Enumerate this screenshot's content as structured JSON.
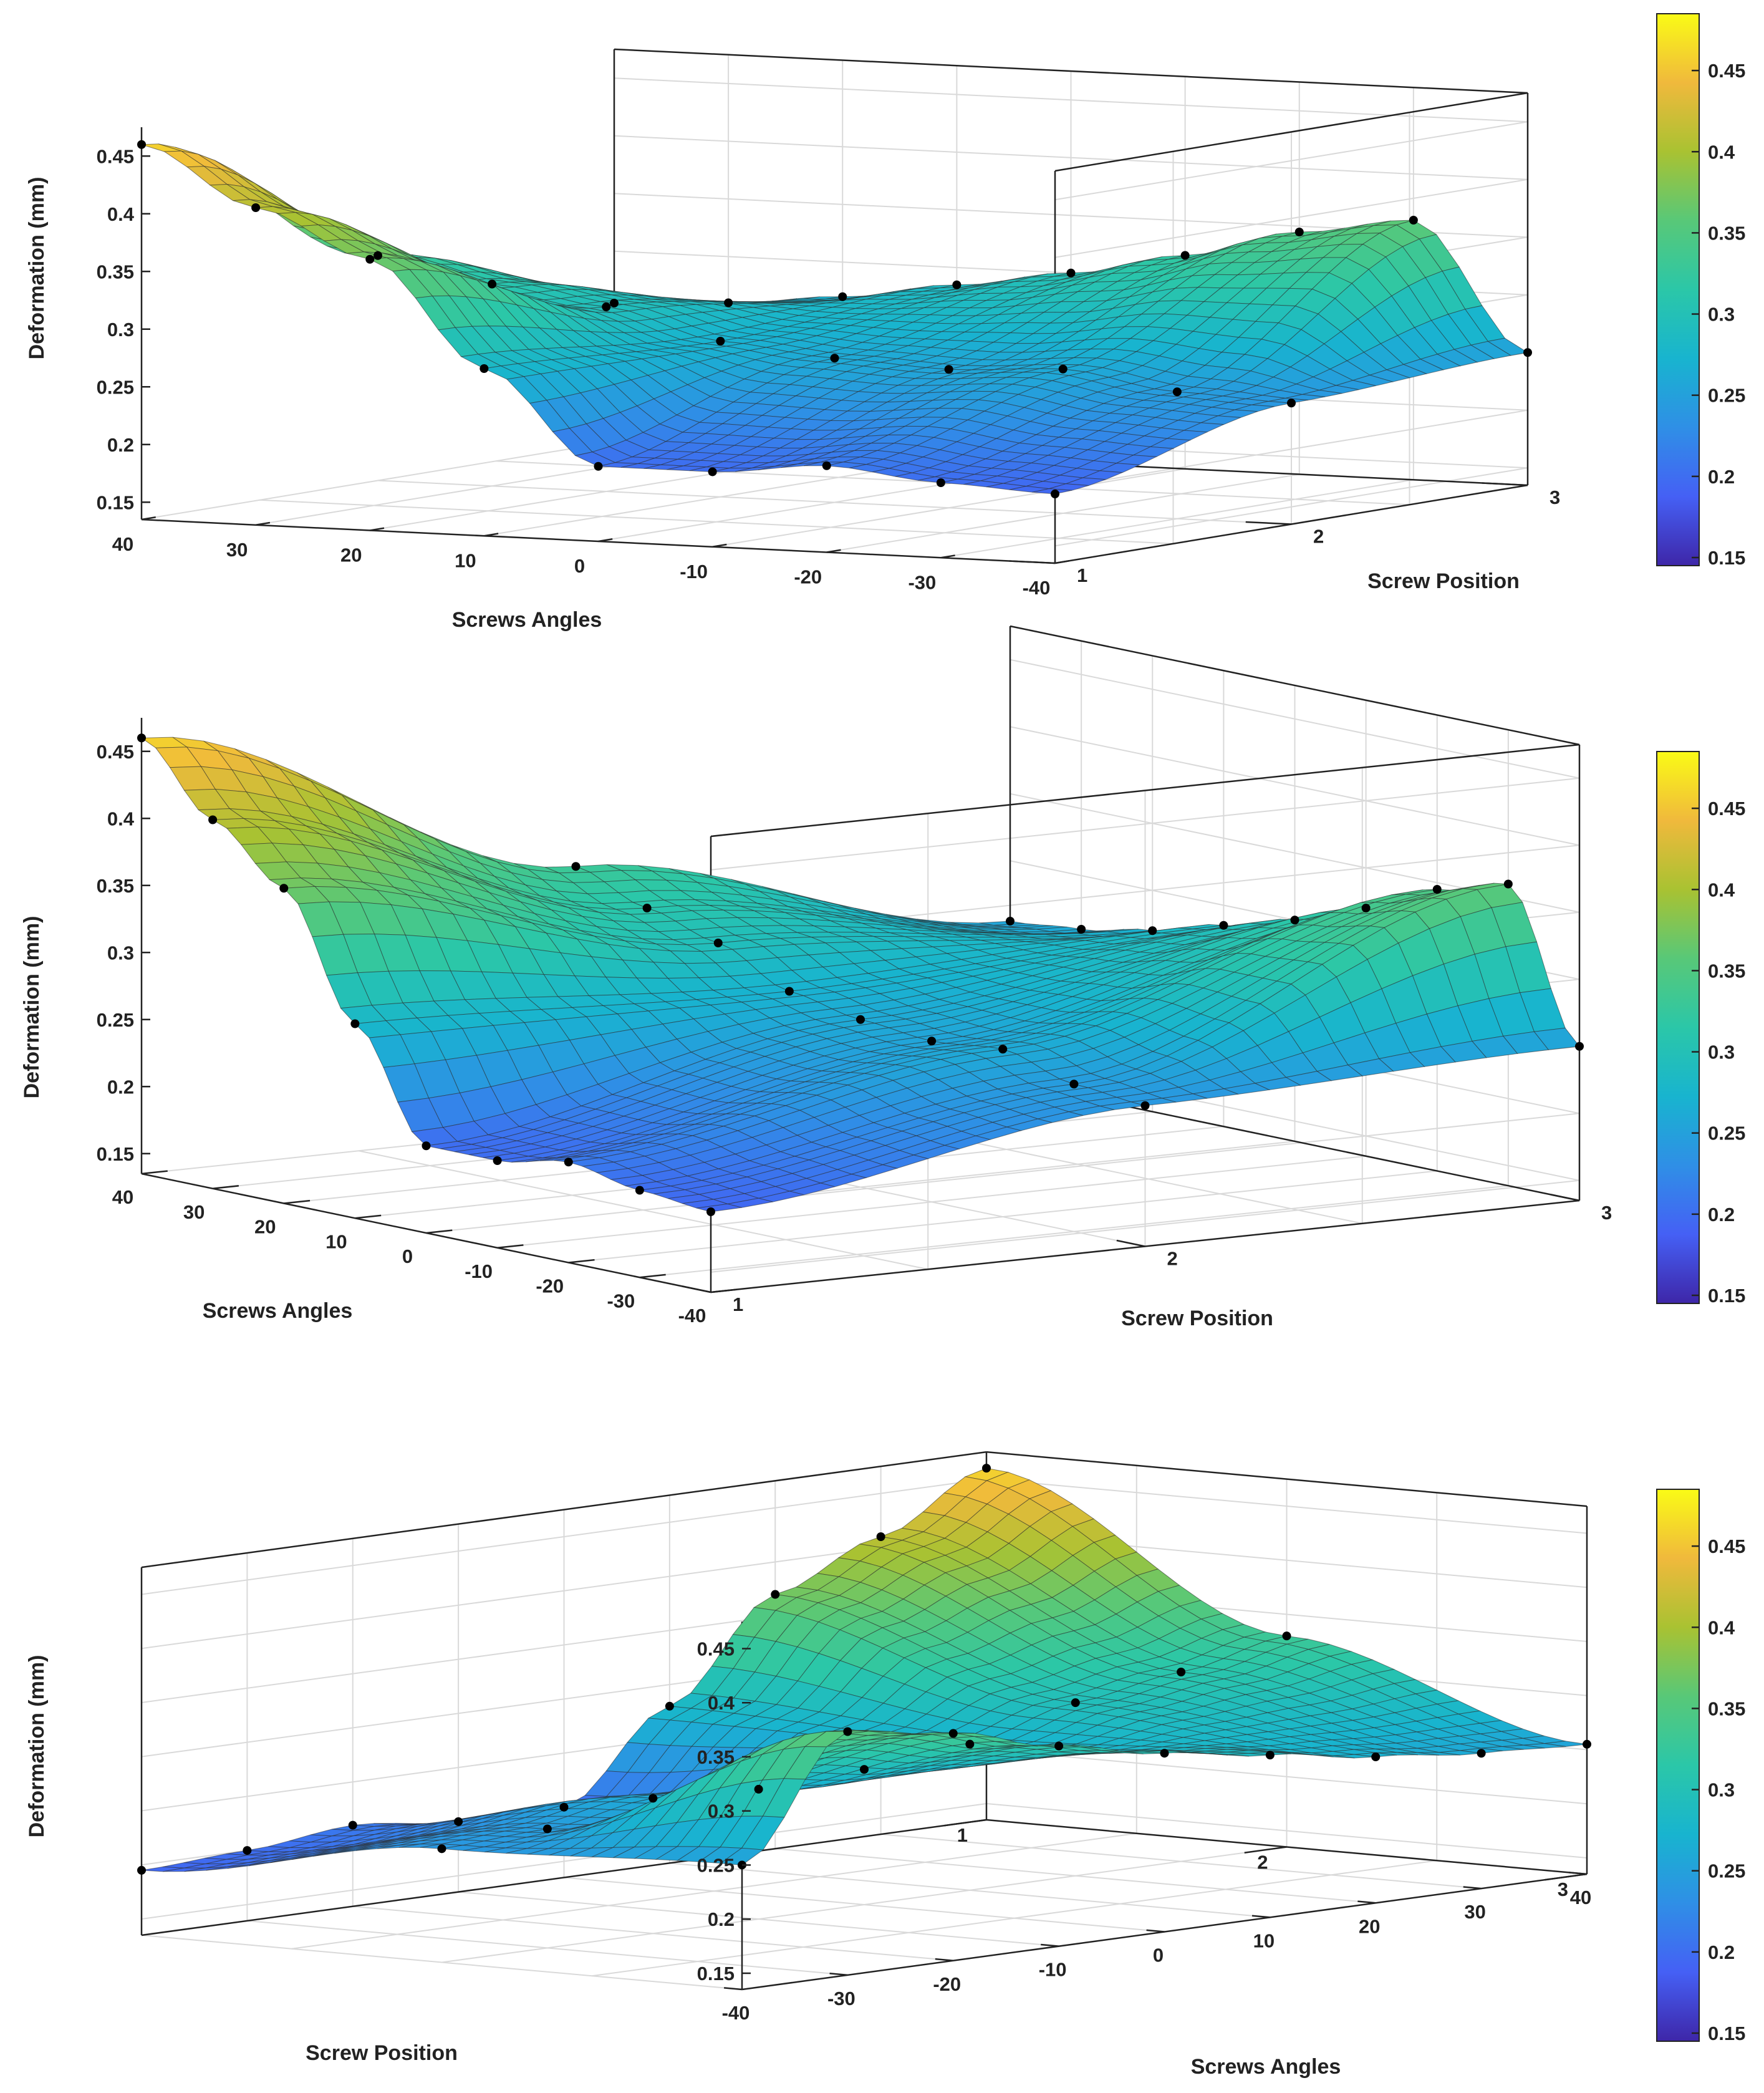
{
  "chart_data": [
    {
      "type": "surface",
      "view": "front",
      "zlabel": "Deformation (mm)",
      "xlabel": "Screws Angles",
      "ylabel": "Screw Position",
      "zlim": [
        0.135,
        0.475
      ],
      "xlim": [
        -40,
        40
      ],
      "ylim": [
        1,
        3
      ],
      "z_ticks": [
        "0.15",
        "0.2",
        "0.25",
        "0.3",
        "0.35",
        "0.4",
        "0.45"
      ],
      "x_ticks": [
        "40",
        "30",
        "20",
        "10",
        "0",
        "-10",
        "-20",
        "-30",
        "-40"
      ],
      "y_ticks": [
        "1",
        "2",
        "3"
      ],
      "colorbar_ticks": [
        "0.15",
        "0.2",
        "0.25",
        "0.3",
        "0.35",
        "0.4",
        "0.45"
      ],
      "colorbar_range": [
        0.145,
        0.485
      ],
      "colormap": [
        "#3e26a8",
        "#4560f5",
        "#2f8fe6",
        "#18b4cf",
        "#2bc7a8",
        "#58c878",
        "#a9c232",
        "#f0b93c",
        "#fafb16"
      ],
      "series": [
        {
          "name": "Screw Position 1",
          "angles": [
            40,
            30,
            20,
            10,
            0,
            -10,
            -20,
            -30,
            -40
          ],
          "values": [
            0.46,
            0.41,
            0.37,
            0.28,
            0.2,
            0.2,
            0.21,
            0.2,
            0.195
          ]
        },
        {
          "name": "Screw Position 2",
          "angles": [
            40,
            30,
            20,
            10,
            0,
            -10,
            -20,
            -30,
            -40
          ],
          "values": [
            0.33,
            0.31,
            0.295,
            0.27,
            0.26,
            0.255,
            0.26,
            0.245,
            0.24
          ]
        },
        {
          "name": "Screw Position 3",
          "angles": [
            40,
            30,
            20,
            10,
            0,
            -10,
            -20,
            -30,
            -40
          ],
          "values": [
            0.255,
            0.26,
            0.27,
            0.285,
            0.3,
            0.32,
            0.345,
            0.36,
            0.25
          ]
        }
      ]
    },
    {
      "type": "surface",
      "view": "side",
      "zlabel": "Deformation (mm)",
      "xlabel": "Screws Angles",
      "ylabel": "Screw Position",
      "zlim": [
        0.135,
        0.475
      ],
      "xlim": [
        -40,
        40
      ],
      "ylim": [
        1,
        3
      ],
      "z_ticks": [
        "0.15",
        "0.2",
        "0.25",
        "0.3",
        "0.35",
        "0.4",
        "0.45"
      ],
      "x_ticks": [
        "40",
        "30",
        "20",
        "10",
        "0",
        "-10",
        "-20",
        "-30",
        "-40"
      ],
      "y_ticks": [
        "1",
        "2",
        "3"
      ],
      "colorbar_ticks": [
        "0.15",
        "0.2",
        "0.25",
        "0.3",
        "0.35",
        "0.4",
        "0.45"
      ],
      "colorbar_range": [
        0.145,
        0.485
      ],
      "colormap": [
        "#3e26a8",
        "#4560f5",
        "#2f8fe6",
        "#18b4cf",
        "#2bc7a8",
        "#58c878",
        "#a9c232",
        "#f0b93c",
        "#fafb16"
      ],
      "series": [
        {
          "name": "Screw Position 1",
          "angles": [
            40,
            30,
            20,
            10,
            0,
            -10,
            -20,
            -30,
            -40
          ],
          "values": [
            0.46,
            0.41,
            0.37,
            0.28,
            0.2,
            0.2,
            0.21,
            0.2,
            0.195
          ]
        },
        {
          "name": "Screw Position 2",
          "angles": [
            40,
            30,
            20,
            10,
            0,
            -10,
            -20,
            -30,
            -40
          ],
          "values": [
            0.33,
            0.31,
            0.295,
            0.27,
            0.26,
            0.255,
            0.26,
            0.245,
            0.24
          ]
        },
        {
          "name": "Screw Position 3",
          "angles": [
            40,
            30,
            20,
            10,
            0,
            -10,
            -20,
            -30,
            -40
          ],
          "values": [
            0.255,
            0.26,
            0.27,
            0.285,
            0.3,
            0.32,
            0.345,
            0.36,
            0.25
          ]
        }
      ]
    },
    {
      "type": "surface",
      "view": "rear",
      "zlabel": "Deformation (mm)",
      "xlabel": "Screws Angles",
      "ylabel": "Screw Position",
      "zlim": [
        0.135,
        0.475
      ],
      "xlim": [
        -40,
        40
      ],
      "ylim": [
        1,
        3
      ],
      "z_ticks": [
        "0.15",
        "0.2",
        "0.25",
        "0.3",
        "0.35",
        "0.4",
        "0.45"
      ],
      "x_ticks": [
        "-40",
        "-30",
        "-20",
        "-10",
        "0",
        "10",
        "20",
        "30",
        "40"
      ],
      "y_ticks": [
        "1",
        "2",
        "3"
      ],
      "colorbar_ticks": [
        "0.15",
        "0.2",
        "0.25",
        "0.3",
        "0.35",
        "0.4",
        "0.45"
      ],
      "colorbar_range": [
        0.145,
        0.485
      ],
      "colormap": [
        "#3e26a8",
        "#4560f5",
        "#2f8fe6",
        "#18b4cf",
        "#2bc7a8",
        "#58c878",
        "#a9c232",
        "#f0b93c",
        "#fafb16"
      ],
      "series": [
        {
          "name": "Screw Position 1",
          "angles": [
            40,
            30,
            20,
            10,
            0,
            -10,
            -20,
            -30,
            -40
          ],
          "values": [
            0.46,
            0.41,
            0.37,
            0.28,
            0.2,
            0.2,
            0.21,
            0.2,
            0.195
          ]
        },
        {
          "name": "Screw Position 2",
          "angles": [
            40,
            30,
            20,
            10,
            0,
            -10,
            -20,
            -30,
            -40
          ],
          "values": [
            0.33,
            0.31,
            0.295,
            0.27,
            0.26,
            0.255,
            0.26,
            0.245,
            0.24
          ]
        },
        {
          "name": "Screw Position 3",
          "angles": [
            40,
            30,
            20,
            10,
            0,
            -10,
            -20,
            -30,
            -40
          ],
          "values": [
            0.255,
            0.26,
            0.27,
            0.285,
            0.3,
            0.32,
            0.345,
            0.36,
            0.25
          ]
        }
      ]
    }
  ]
}
